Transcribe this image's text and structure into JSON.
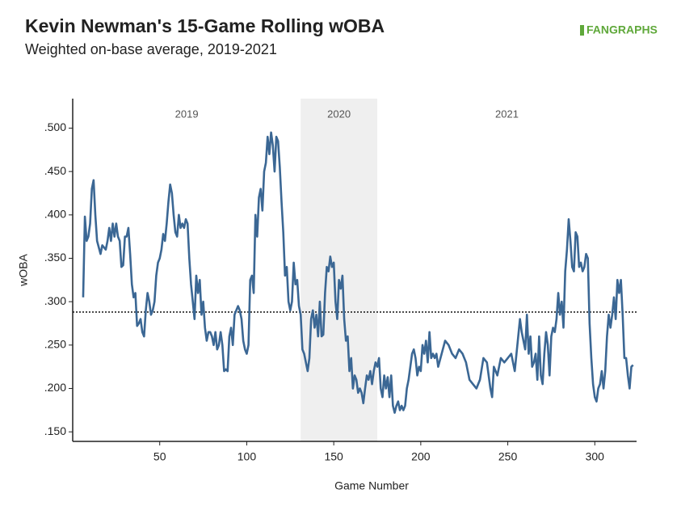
{
  "chart_data": {
    "type": "line",
    "title": "Kevin Newman's 15-Game Rolling wOBA",
    "subtitle": "Weighted on-base average, 2019-2021",
    "logo": "FANGRAPHS",
    "x_label": "Game Number",
    "y_label": "wOBA",
    "xlim": [
      0,
      324
    ],
    "ylim": [
      0.139,
      0.534
    ],
    "xticks": [
      50,
      100,
      150,
      200,
      250,
      300
    ],
    "yticks": [
      {
        "value": 0.15,
        "label": ".150"
      },
      {
        "value": 0.2,
        "label": ".200"
      },
      {
        "value": 0.25,
        "label": ".250"
      },
      {
        "value": 0.3,
        "label": ".300"
      },
      {
        "value": 0.35,
        "label": ".350"
      },
      {
        "value": 0.4,
        "label": ".400"
      },
      {
        "value": 0.45,
        "label": ".450"
      },
      {
        "value": 0.5,
        "label": ".500"
      }
    ],
    "periods": [
      {
        "label": "2019",
        "xlim": [
          0,
          131
        ],
        "shaded": false
      },
      {
        "label": "2020",
        "xlim": [
          131,
          175
        ],
        "shaded": true
      },
      {
        "label": "2021",
        "xlim": [
          175,
          324
        ],
        "shaded": false
      }
    ],
    "reference_line": 0.288,
    "series": [
      {
        "name": "wOBA",
        "color": "#3b6794",
        "x": [
          6,
          7,
          8,
          9,
          10,
          11,
          12,
          13,
          14,
          16,
          17,
          19,
          20,
          21,
          22,
          23,
          24,
          25,
          26,
          27,
          28,
          29,
          30,
          31,
          32,
          33,
          34,
          35,
          36,
          37,
          38,
          39,
          40,
          41,
          42,
          43,
          44,
          45,
          46,
          47,
          48,
          49,
          50,
          51,
          52,
          53,
          54,
          55,
          56,
          57,
          58,
          59,
          60,
          61,
          62,
          63,
          64,
          65,
          66,
          67,
          68,
          69,
          70,
          71,
          72,
          73,
          74,
          75,
          76,
          77,
          78,
          79,
          80,
          81,
          82,
          83,
          84,
          85,
          86,
          87,
          88,
          89,
          90,
          91,
          92,
          93,
          94,
          95,
          96,
          97,
          98,
          99,
          100,
          101,
          102,
          103,
          104,
          105,
          106,
          107,
          108,
          109,
          110,
          111,
          112,
          113,
          114,
          115,
          116,
          117,
          118,
          119,
          120,
          121,
          122,
          123,
          124,
          125,
          126,
          127,
          128,
          129,
          130,
          131,
          132,
          133,
          134,
          135,
          136,
          137,
          138,
          139,
          140,
          141,
          142,
          143,
          144,
          145,
          146,
          147,
          148,
          149,
          150,
          151,
          152,
          153,
          154,
          155,
          156,
          157,
          158,
          159,
          160,
          161,
          162,
          163,
          164,
          165,
          166,
          167,
          168,
          169,
          170,
          171,
          172,
          173,
          174,
          175,
          176,
          177,
          178,
          179,
          180,
          181,
          182,
          183,
          184,
          185,
          186,
          187,
          188,
          189,
          190,
          191,
          192,
          193,
          194,
          195,
          196,
          197,
          198,
          199,
          200,
          201,
          202,
          203,
          204,
          205,
          206,
          207,
          208,
          209,
          210,
          212,
          214,
          216,
          218,
          220,
          222,
          224,
          226,
          228,
          230,
          232,
          234,
          236,
          238,
          240,
          241,
          242,
          244,
          246,
          248,
          250,
          252,
          254,
          256,
          257,
          258,
          259,
          260,
          261,
          262,
          263,
          264,
          265,
          266,
          267,
          268,
          269,
          270,
          271,
          272,
          273,
          274,
          275,
          276,
          277,
          278,
          279,
          280,
          281,
          282,
          283,
          284,
          285,
          286,
          287,
          288,
          289,
          290,
          291,
          292,
          293,
          294,
          295,
          296,
          297,
          298,
          299,
          300,
          301,
          302,
          303,
          304,
          305,
          306,
          307,
          308,
          309,
          310,
          311,
          312,
          313,
          314,
          315,
          316,
          317,
          318,
          319,
          320,
          321,
          322
        ],
        "values": [
          0.305,
          0.398,
          0.37,
          0.375,
          0.39,
          0.43,
          0.44,
          0.4,
          0.37,
          0.355,
          0.365,
          0.36,
          0.37,
          0.385,
          0.37,
          0.39,
          0.375,
          0.39,
          0.375,
          0.37,
          0.34,
          0.342,
          0.375,
          0.375,
          0.385,
          0.355,
          0.32,
          0.305,
          0.31,
          0.272,
          0.275,
          0.28,
          0.265,
          0.26,
          0.29,
          0.31,
          0.3,
          0.285,
          0.29,
          0.3,
          0.33,
          0.345,
          0.35,
          0.36,
          0.378,
          0.37,
          0.39,
          0.415,
          0.435,
          0.425,
          0.4,
          0.38,
          0.375,
          0.4,
          0.385,
          0.39,
          0.385,
          0.395,
          0.39,
          0.35,
          0.32,
          0.3,
          0.28,
          0.33,
          0.31,
          0.325,
          0.285,
          0.3,
          0.27,
          0.255,
          0.265,
          0.265,
          0.26,
          0.25,
          0.265,
          0.245,
          0.25,
          0.265,
          0.25,
          0.22,
          0.222,
          0.22,
          0.26,
          0.27,
          0.25,
          0.285,
          0.29,
          0.295,
          0.29,
          0.28,
          0.255,
          0.245,
          0.24,
          0.25,
          0.325,
          0.33,
          0.31,
          0.4,
          0.375,
          0.42,
          0.43,
          0.405,
          0.45,
          0.46,
          0.49,
          0.47,
          0.495,
          0.48,
          0.45,
          0.49,
          0.485,
          0.455,
          0.415,
          0.38,
          0.33,
          0.34,
          0.3,
          0.29,
          0.3,
          0.345,
          0.32,
          0.325,
          0.295,
          0.285,
          0.245,
          0.24,
          0.23,
          0.22,
          0.235,
          0.28,
          0.29,
          0.27,
          0.285,
          0.26,
          0.3,
          0.26,
          0.262,
          0.31,
          0.34,
          0.335,
          0.352,
          0.34,
          0.345,
          0.3,
          0.28,
          0.325,
          0.315,
          0.33,
          0.28,
          0.255,
          0.26,
          0.22,
          0.235,
          0.2,
          0.215,
          0.21,
          0.195,
          0.2,
          0.195,
          0.183,
          0.2,
          0.215,
          0.21,
          0.22,
          0.205,
          0.22,
          0.23,
          0.225,
          0.235,
          0.2,
          0.19,
          0.215,
          0.2,
          0.213,
          0.19,
          0.215,
          0.18,
          0.172,
          0.18,
          0.185,
          0.175,
          0.18,
          0.175,
          0.18,
          0.2,
          0.21,
          0.225,
          0.24,
          0.245,
          0.235,
          0.215,
          0.225,
          0.22,
          0.25,
          0.24,
          0.255,
          0.23,
          0.265,
          0.235,
          0.24,
          0.235,
          0.24,
          0.225,
          0.24,
          0.255,
          0.25,
          0.24,
          0.235,
          0.245,
          0.24,
          0.23,
          0.21,
          0.205,
          0.2,
          0.21,
          0.235,
          0.23,
          0.2,
          0.19,
          0.225,
          0.215,
          0.235,
          0.23,
          0.235,
          0.24,
          0.22,
          0.26,
          0.28,
          0.265,
          0.255,
          0.245,
          0.285,
          0.24,
          0.26,
          0.225,
          0.23,
          0.24,
          0.21,
          0.26,
          0.215,
          0.205,
          0.24,
          0.265,
          0.25,
          0.215,
          0.26,
          0.27,
          0.265,
          0.28,
          0.31,
          0.285,
          0.3,
          0.27,
          0.335,
          0.36,
          0.395,
          0.37,
          0.34,
          0.335,
          0.38,
          0.375,
          0.34,
          0.345,
          0.335,
          0.34,
          0.355,
          0.35,
          0.275,
          0.235,
          0.205,
          0.19,
          0.185,
          0.2,
          0.205,
          0.22,
          0.2,
          0.22,
          0.26,
          0.285,
          0.27,
          0.285,
          0.305,
          0.28,
          0.325,
          0.31,
          0.325,
          0.285,
          0.235,
          0.235,
          0.215,
          0.2,
          0.225,
          0.227
        ]
      }
    ]
  }
}
